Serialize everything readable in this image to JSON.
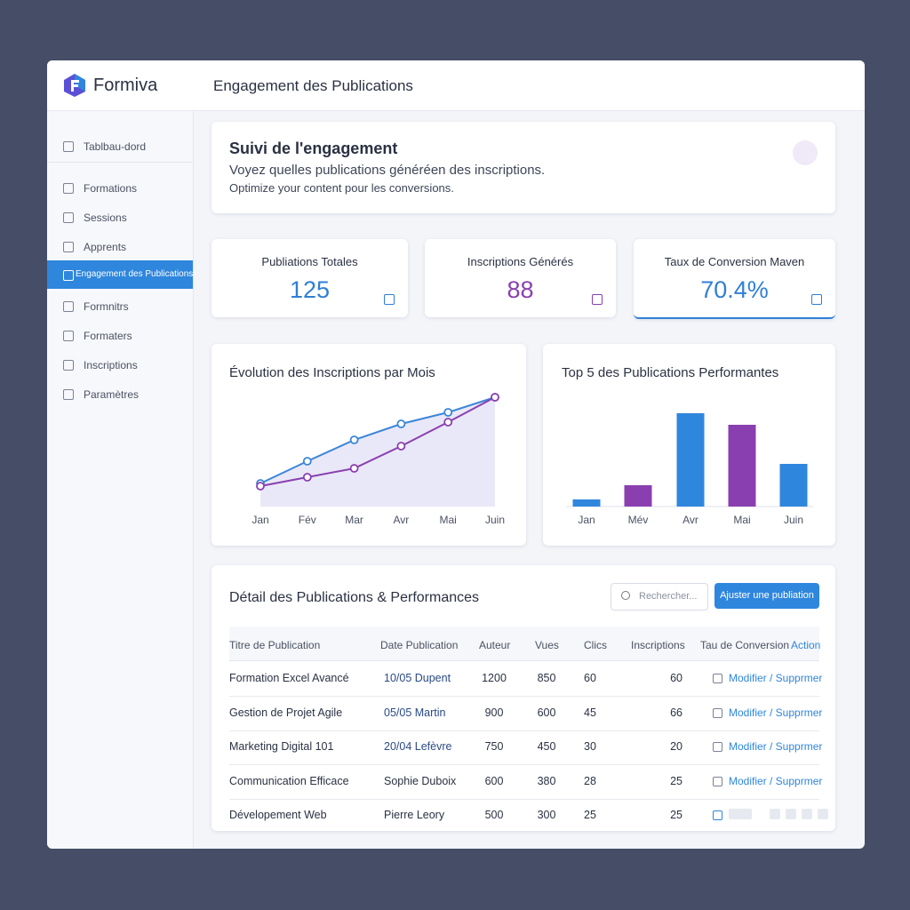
{
  "app": {
    "name": "Formiva",
    "page_title": "Engagement des Publications"
  },
  "sidebar": {
    "items": [
      "Tablbau-dord",
      "Formations",
      "Sessions",
      "Apprents",
      "Engagement des Publications",
      "Formnitrs",
      "Formaters",
      "Inscriptions",
      "Paramètres"
    ],
    "active": 4
  },
  "intro": {
    "title": "Suivi de l'engagement",
    "line1": "Voyez quelles publications généréen des inscriptions.",
    "line2": "Optimize your content pour les conversions."
  },
  "kpis": [
    {
      "label": "Publiations Totales",
      "value": "125",
      "color": "#2f7fd6"
    },
    {
      "label": "Inscriptions Générés",
      "value": "88",
      "color": "#8a3fb0"
    },
    {
      "label": "Taux de Conversion Maven",
      "value": "70.4%",
      "color": "#2f7fd6"
    }
  ],
  "line_chart": {
    "type": "line",
    "title": "Évolution des Inscriptions par Mois",
    "categories": [
      "Jan",
      "Fév",
      "Mar",
      "Avr",
      "Mai",
      "Juin"
    ],
    "series": [
      {
        "color": "#3a86d8",
        "values": [
          26,
          51,
          75,
          93,
          106,
          123
        ]
      },
      {
        "color": "#8a3fb0",
        "values": [
          23,
          33,
          43,
          68,
          95,
          123
        ]
      }
    ]
  },
  "bar_chart": {
    "type": "bar",
    "title": "Top 5 des Publications Performantes",
    "categories": [
      "Jan",
      "Mév",
      "Avr",
      "Mai",
      "Juin"
    ],
    "values": [
      8,
      24,
      105,
      92,
      48
    ],
    "colors": [
      "#2f86dd",
      "#8a3fb0",
      "#2f86dd",
      "#8a3fb0",
      "#2f86dd"
    ]
  },
  "table": {
    "title": "Détail des Publications & Performances",
    "search": "Rechercher...",
    "button": "Ajuster une publiation",
    "headers": [
      "Titre de Publication",
      "Date Publication",
      "Auteur",
      "Vues",
      "Clics",
      "Inscriptions",
      "Tau de Conversion",
      "Action"
    ],
    "rows": [
      {
        "cells": [
          "Formation Excel Avancé",
          "10/05 Dupent",
          "1200",
          "850",
          "60",
          "60"
        ],
        "action": "Modifier / Supprmer"
      },
      {
        "cells": [
          "Gestion de Projet Agile",
          "05/05 Martin",
          "900",
          "600",
          "45",
          "66"
        ],
        "action": "Modifier / Supprmer"
      },
      {
        "cells": [
          "Marketing Digital 101",
          "20/04 Lefèvre",
          "750",
          "450",
          "30",
          "20"
        ],
        "action": "Modifier / Supprmer"
      },
      {
        "cells": [
          "Communication Efficace",
          "Sophie Duboix",
          "600",
          "380",
          "28",
          "25"
        ],
        "action": "Modifier / Supprmer"
      },
      {
        "cells": [
          "Dévelopement Web",
          "Pierre Leory",
          "500",
          "300",
          "25",
          "25"
        ]
      }
    ]
  }
}
